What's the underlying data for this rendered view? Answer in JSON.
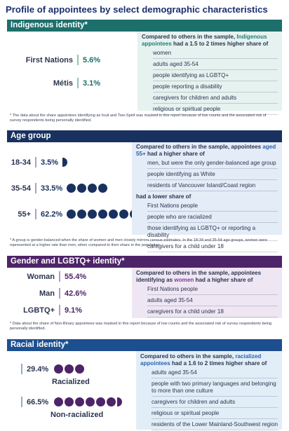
{
  "title": "Profile of appointees by select demographic characteristics",
  "colors": {
    "teal": "#1d6f6b",
    "navy": "#19315f",
    "purple": "#4e2468",
    "blue": "#1d4f8f"
  },
  "indigenous": {
    "header": "Indigenous identity*",
    "rows": [
      {
        "label": "First Nations",
        "value": "5.6%"
      },
      {
        "label": "Métis",
        "value": "3.1%"
      }
    ],
    "lead_prefix": "Compared to others in the sample, ",
    "lead_highlight": "Indigenous appointees",
    "lead_suffix": " had a 1.5 to 2 times higher share of",
    "items": [
      "women",
      "adults aged 35-54",
      "people identifying as LGBTQ+",
      "people reporting a disability",
      "caregivers for children and adults",
      "religious or spiritual people"
    ],
    "note": "* The data about the share appointees identifying as Inuit and Two-Spirit was masked in this report because of low counts and the associated risk of survey respondents being personally identified."
  },
  "age": {
    "header": "Age group",
    "rows": [
      {
        "label": "18-34",
        "value": "3.5%",
        "circles": 0.5
      },
      {
        "label": "35-54",
        "value": "33.5%",
        "circles": 4
      },
      {
        "label": "55+",
        "value": "62.2%",
        "circles": 7
      }
    ],
    "lead_prefix": "Compared to others in the sample, appointees ",
    "lead_highlight": "aged 55+",
    "lead_suffix": " had a higher share of",
    "higher_items": [
      "men, but were the only gender-balanced age group",
      "people identifying as White",
      "residents of Vancouver Island/Coast region"
    ],
    "lower_label": "had a lower share of",
    "lower_items": [
      "First Nations people",
      "people who are racialized",
      "those identifying as LGBTQ+ or reporting a disability",
      "caregivers for a child under 18"
    ],
    "note": "* A group is gender-balanced when the share of women and men closely mirrors census estimates. In the 18-34 and 35-54 age groups, women were represented at a higher rate than men, when compared to their share in the population."
  },
  "gender": {
    "header": "Gender and LGBTQ+ identity*",
    "rows": [
      {
        "label": "Woman",
        "value": "55.4%"
      },
      {
        "label": "Man",
        "value": "42.6%"
      },
      {
        "label": "LGBTQ+",
        "value": "9.1%"
      }
    ],
    "lead_prefix": "Compared to others in the sample, appointees identifying as ",
    "lead_highlight": "women",
    "lead_suffix": " had a higher share of",
    "items": [
      "First Nations people",
      "adults aged 35-54",
      "caregivers for a child under 18"
    ],
    "note": "* Data about the share of Non-Binary appointees was masked in this report because of low counts and the associated risk of survey respondents being personally identified."
  },
  "racial": {
    "header": "Racial identity*",
    "rows": [
      {
        "label": "Racialized",
        "value": "29.4%",
        "circles": 3
      },
      {
        "label": "Non-racialized",
        "value": "66.5%",
        "circles": 7
      }
    ],
    "lead_prefix": "Compared to others in the sample, ",
    "lead_highlight": "racialized appointees",
    "lead_suffix": " had a 1.6 to 2 times higher share of",
    "items": [
      "adults aged 35-54",
      "people with two primary languages and belonging to more than one culture",
      "caregivers for children and adults",
      "religious or spiritual people",
      "residents of the Lower Mainland-Southwest region"
    ]
  }
}
